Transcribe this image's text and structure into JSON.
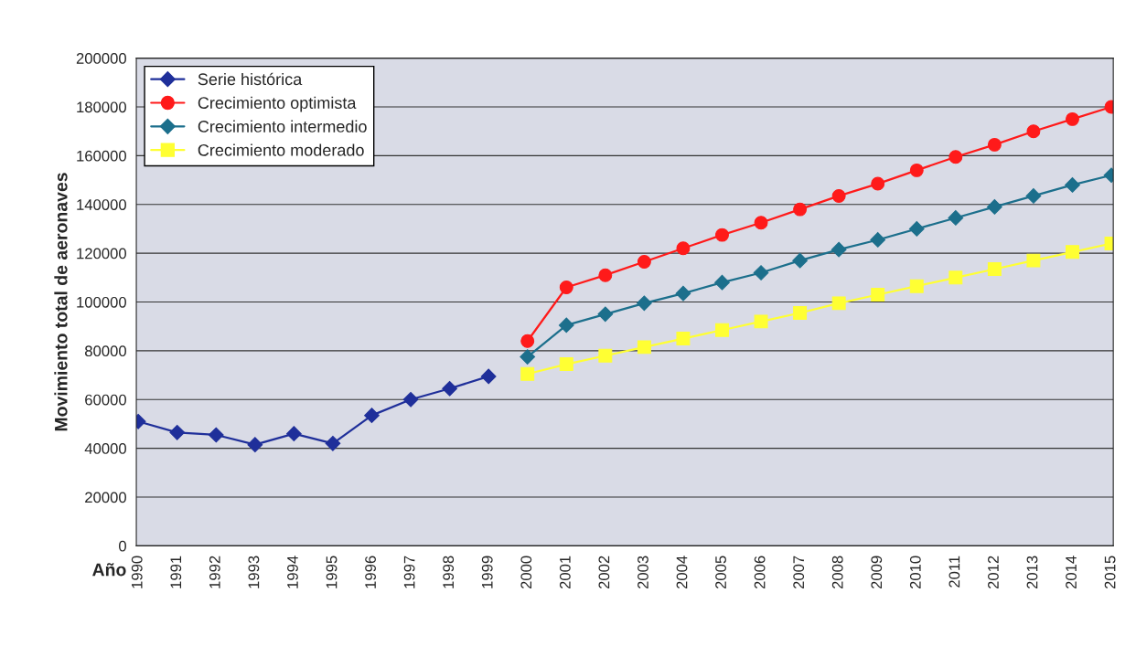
{
  "chart_data": {
    "type": "line",
    "xlabel": "Año",
    "ylabel": "Movimiento total de aeronaves",
    "categories": [
      "1990",
      "1991",
      "1992",
      "1993",
      "1994",
      "1995",
      "1996",
      "1997",
      "1998",
      "1999",
      "2000",
      "2001",
      "2002",
      "2003",
      "2004",
      "2005",
      "2006",
      "2007",
      "2008",
      "2009",
      "2010",
      "2011",
      "2012",
      "2013",
      "2014",
      "2015"
    ],
    "ylim": [
      0,
      200000
    ],
    "yticks": [
      0,
      20000,
      40000,
      60000,
      80000,
      100000,
      120000,
      140000,
      160000,
      180000,
      200000
    ],
    "grid": "y",
    "legend": "top left",
    "series": [
      {
        "name": "Serie histórica",
        "color": "#1f2f9a",
        "marker": "diamond",
        "values": [
          51000,
          46500,
          45500,
          41500,
          46000,
          42000,
          53500,
          60000,
          64500,
          69500,
          null,
          null,
          null,
          null,
          null,
          null,
          null,
          null,
          null,
          null,
          null,
          null,
          null,
          null,
          null,
          null
        ]
      },
      {
        "name": "Crecimiento optimista",
        "color": "#ff1a1a",
        "marker": "circle",
        "values": [
          null,
          null,
          null,
          null,
          null,
          null,
          null,
          null,
          null,
          null,
          84000,
          106000,
          111000,
          116500,
          122000,
          127500,
          132500,
          138000,
          143500,
          148500,
          154000,
          159500,
          164500,
          170000,
          175000,
          180000
        ]
      },
      {
        "name": "Crecimiento intermedio",
        "color": "#1c6f8c",
        "marker": "diamond",
        "values": [
          null,
          null,
          null,
          null,
          null,
          null,
          null,
          null,
          null,
          null,
          77500,
          90500,
          95000,
          99500,
          103500,
          108000,
          112000,
          117000,
          121500,
          125500,
          130000,
          134500,
          139000,
          143500,
          148000,
          152000
        ]
      },
      {
        "name": "Crecimiento moderado",
        "color": "#ffff33",
        "marker": "square",
        "values": [
          null,
          null,
          null,
          null,
          null,
          null,
          null,
          null,
          null,
          null,
          70500,
          74500,
          78000,
          81500,
          85000,
          88500,
          92000,
          95500,
          99500,
          103000,
          106500,
          110000,
          113500,
          117000,
          120500,
          124000
        ]
      }
    ]
  }
}
